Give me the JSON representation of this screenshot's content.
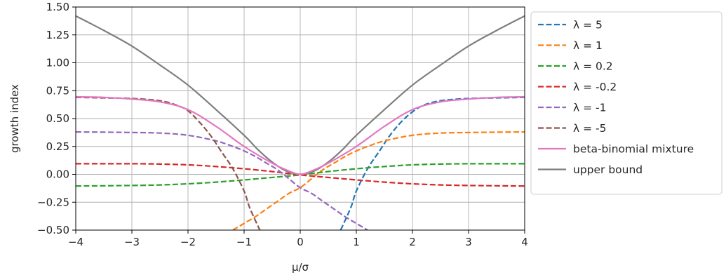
{
  "chart_data": {
    "type": "line",
    "xlabel": "μ/σ",
    "ylabel": "growth index",
    "xlim": [
      -4,
      4
    ],
    "ylim": [
      -0.5,
      1.5
    ],
    "xticks": [
      -4,
      -3,
      -2,
      -1,
      0,
      1,
      2,
      3,
      4
    ],
    "xtick_labels": [
      "−4",
      "−3",
      "−2",
      "−1",
      "0",
      "1",
      "2",
      "3",
      "4"
    ],
    "yticks": [
      -0.5,
      -0.25,
      0.0,
      0.25,
      0.5,
      0.75,
      1.0,
      1.25,
      1.5
    ],
    "ytick_labels": [
      "−0.50",
      "−0.25",
      "0.00",
      "0.25",
      "0.50",
      "0.75",
      "1.00",
      "1.25",
      "1.50"
    ],
    "grid": true,
    "legend_position": "outside-right-top",
    "series": [
      {
        "name": "λ = 5",
        "color": "#1f77b4",
        "style": "dashed",
        "x": [
          0.72,
          0.9,
          1.0,
          1.2,
          1.4,
          1.6,
          1.8,
          2.0,
          2.2,
          2.5,
          3.0,
          3.5,
          4.0
        ],
        "y": [
          -0.5,
          -0.3,
          -0.15,
          0.05,
          0.2,
          0.35,
          0.47,
          0.56,
          0.62,
          0.66,
          0.68,
          0.685,
          0.69
        ]
      },
      {
        "name": "λ = 1",
        "color": "#ff7f0e",
        "style": "dashed",
        "x": [
          -1.2,
          -1.0,
          -0.8,
          -0.6,
          -0.4,
          -0.2,
          0.0,
          0.2,
          0.4,
          0.6,
          0.8,
          1.0,
          1.2,
          1.5,
          2.0,
          2.5,
          3.0,
          3.5,
          4.0
        ],
        "y": [
          -0.5,
          -0.44,
          -0.38,
          -0.31,
          -0.24,
          -0.17,
          -0.12,
          -0.04,
          0.04,
          0.1,
          0.16,
          0.21,
          0.25,
          0.3,
          0.35,
          0.37,
          0.375,
          0.378,
          0.38
        ]
      },
      {
        "name": "λ = 0.2",
        "color": "#2ca02c",
        "style": "dashed",
        "x": [
          -4.0,
          -3.0,
          -2.5,
          -2.0,
          -1.5,
          -1.0,
          -0.5,
          0.0,
          0.5,
          1.0,
          1.5,
          2.0,
          2.5,
          3.0,
          4.0
        ],
        "y": [
          -0.105,
          -0.1,
          -0.095,
          -0.085,
          -0.07,
          -0.05,
          -0.028,
          -0.005,
          0.025,
          0.05,
          0.07,
          0.085,
          0.092,
          0.095,
          0.095
        ]
      },
      {
        "name": "λ = -0.2",
        "color": "#d62728",
        "style": "dashed",
        "x": [
          -4.0,
          -3.0,
          -2.5,
          -2.0,
          -1.5,
          -1.0,
          -0.5,
          0.0,
          0.5,
          1.0,
          1.5,
          2.0,
          2.5,
          3.0,
          4.0
        ],
        "y": [
          0.095,
          0.095,
          0.092,
          0.085,
          0.07,
          0.05,
          0.025,
          -0.005,
          -0.028,
          -0.05,
          -0.07,
          -0.085,
          -0.095,
          -0.1,
          -0.105
        ]
      },
      {
        "name": "λ = -1",
        "color": "#9467bd",
        "style": "dashed",
        "x": [
          -4.0,
          -3.5,
          -3.0,
          -2.5,
          -2.0,
          -1.5,
          -1.2,
          -1.0,
          -0.8,
          -0.6,
          -0.4,
          -0.2,
          0.0,
          0.2,
          0.4,
          0.6,
          0.8,
          1.0,
          1.2
        ],
        "y": [
          0.38,
          0.378,
          0.375,
          0.37,
          0.35,
          0.3,
          0.25,
          0.21,
          0.16,
          0.1,
          0.04,
          -0.04,
          -0.12,
          -0.17,
          -0.24,
          -0.31,
          -0.38,
          -0.44,
          -0.5
        ]
      },
      {
        "name": "λ = -5",
        "color": "#8c564b",
        "style": "dashed",
        "x": [
          -4.0,
          -3.5,
          -3.0,
          -2.5,
          -2.2,
          -2.0,
          -1.8,
          -1.6,
          -1.4,
          -1.2,
          -1.0,
          -0.9,
          -0.72
        ],
        "y": [
          0.69,
          0.685,
          0.68,
          0.66,
          0.62,
          0.57,
          0.47,
          0.35,
          0.2,
          0.05,
          -0.15,
          -0.3,
          -0.5
        ]
      },
      {
        "name": "beta-binomial mixture",
        "color": "#e377c2",
        "style": "solid",
        "x": [
          -4.0,
          -3.5,
          -3.0,
          -2.5,
          -2.0,
          -1.5,
          -1.0,
          -0.5,
          -0.25,
          0.0,
          0.25,
          0.5,
          1.0,
          1.5,
          2.0,
          2.5,
          3.0,
          3.5,
          4.0
        ],
        "y": [
          0.695,
          0.69,
          0.675,
          0.65,
          0.58,
          0.43,
          0.25,
          0.1,
          0.04,
          0.0,
          0.04,
          0.1,
          0.25,
          0.43,
          0.58,
          0.65,
          0.675,
          0.69,
          0.695
        ]
      },
      {
        "name": "upper bound",
        "color": "#7f7f7f",
        "style": "solid",
        "x": [
          -4.0,
          -3.5,
          -3.0,
          -2.5,
          -2.0,
          -1.5,
          -1.0,
          -0.75,
          -0.5,
          -0.25,
          0.0,
          0.25,
          0.5,
          0.75,
          1.0,
          1.5,
          2.0,
          2.5,
          3.0,
          3.5,
          4.0
        ],
        "y": [
          1.42,
          1.29,
          1.15,
          0.98,
          0.8,
          0.58,
          0.35,
          0.22,
          0.11,
          0.03,
          0.0,
          0.03,
          0.11,
          0.22,
          0.35,
          0.58,
          0.8,
          0.98,
          1.15,
          1.29,
          1.42
        ]
      }
    ]
  }
}
